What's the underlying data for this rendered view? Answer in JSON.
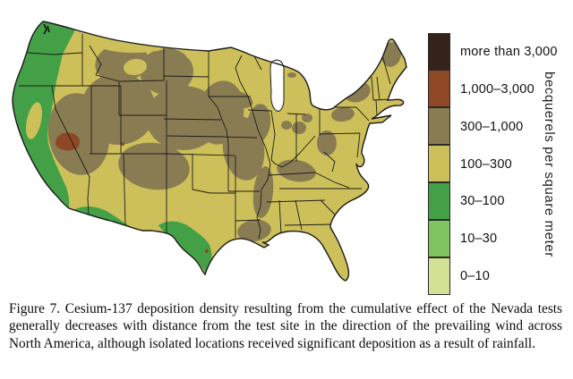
{
  "figure": {
    "caption": "Figure 7. Cesium-137 deposition density resulting from the cumulative effect of the Nevada tests generally decreases with distance from the test site in the direction of the prevailing wind across North America, although isolated locations received significant deposition as a result of rainfall."
  },
  "legend": {
    "unit_label": "becquerels per square meter",
    "items": [
      {
        "label": "more than 3,000",
        "color": "#33231a"
      },
      {
        "label": "1,000–3,000",
        "color": "#8e4826"
      },
      {
        "label": "300–1,000",
        "color": "#8a7c52"
      },
      {
        "label": "100–300",
        "color": "#cdc05a"
      },
      {
        "label": "30–100",
        "color": "#44a047"
      },
      {
        "label": "10–30",
        "color": "#7fc45f"
      },
      {
        "label": "0–10",
        "color": "#d2e294"
      }
    ]
  },
  "map": {
    "region": "continental United States",
    "hotspot": "Nevada test site (1,000–3,000 Bq/m² area)",
    "water_color": "#ffffff",
    "border_color": "#1c1c1c"
  }
}
